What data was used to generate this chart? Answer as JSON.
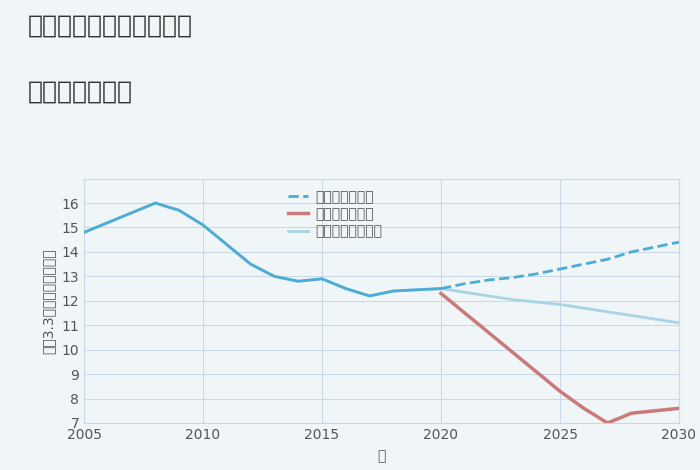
{
  "title_line1": "三重県松阪市大垣内町の",
  "title_line2": "土地の価格推移",
  "xlabel": "年",
  "ylabel": "平（3.3㎡）単価（万円）",
  "ylim": [
    7,
    17
  ],
  "yticks": [
    7,
    8,
    9,
    10,
    11,
    12,
    13,
    14,
    15,
    16
  ],
  "xlim": [
    2005,
    2030
  ],
  "xticks": [
    2005,
    2010,
    2015,
    2020,
    2025,
    2030
  ],
  "good_scenario": {
    "label": "グッドシナリオ",
    "color": "#4bacd6",
    "x_solid": [
      2005,
      2006,
      2007,
      2008,
      2009,
      2010,
      2011,
      2012,
      2013,
      2014,
      2015,
      2016,
      2017,
      2018,
      2019,
      2020
    ],
    "y_solid": [
      14.8,
      15.2,
      15.6,
      16.0,
      15.7,
      15.1,
      14.3,
      13.5,
      13.0,
      12.8,
      12.9,
      12.5,
      12.2,
      12.4,
      12.45,
      12.5
    ],
    "x_dash": [
      2020,
      2021,
      2022,
      2023,
      2024,
      2025,
      2026,
      2027,
      2028,
      2029,
      2030
    ],
    "y_dash": [
      12.5,
      12.7,
      12.85,
      12.95,
      13.1,
      13.3,
      13.5,
      13.7,
      14.0,
      14.2,
      14.4
    ],
    "linewidth": 2.0
  },
  "bad_scenario": {
    "label": "バッドシナリオ",
    "color": "#c97a7a",
    "x": [
      2020,
      2021,
      2022,
      2023,
      2024,
      2025,
      2026,
      2027,
      2028,
      2029,
      2030
    ],
    "y": [
      12.3,
      11.5,
      10.7,
      9.9,
      9.1,
      8.3,
      7.6,
      7.0,
      7.4,
      7.5,
      7.6
    ],
    "linewidth": 2.5,
    "linestyle": "-"
  },
  "normal_scenario": {
    "label": "ノーマルシナリオ",
    "color": "#a8d4e6",
    "x": [
      2005,
      2006,
      2007,
      2008,
      2009,
      2010,
      2011,
      2012,
      2013,
      2014,
      2015,
      2016,
      2017,
      2018,
      2019,
      2020,
      2021,
      2022,
      2023,
      2024,
      2025,
      2026,
      2027,
      2028,
      2029,
      2030
    ],
    "y": [
      14.8,
      15.2,
      15.6,
      16.0,
      15.7,
      15.1,
      14.3,
      13.5,
      13.0,
      12.8,
      12.9,
      12.5,
      12.2,
      12.4,
      12.45,
      12.5,
      12.35,
      12.2,
      12.05,
      11.95,
      11.85,
      11.7,
      11.55,
      11.4,
      11.25,
      11.1
    ],
    "linewidth": 2.0,
    "linestyle": "-"
  },
  "background_color": "#f0f5f8",
  "grid_color": "#c8d8e8",
  "title_fontsize": 18,
  "label_fontsize": 10,
  "tick_fontsize": 10,
  "legend_fontsize": 10
}
